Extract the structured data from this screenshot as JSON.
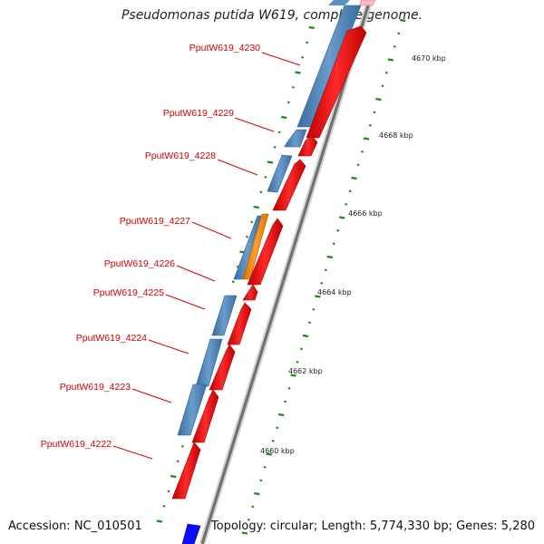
{
  "header": {
    "title": "Pseudomonas putida W619, complete genome."
  },
  "footer": {
    "accession": "Accession: NC_010501",
    "topology": "Topology: circular; Length: 5,774,330 bp; Genes: 5,280"
  },
  "scale": {
    "unit": "kbp",
    "ticks": [
      "4660 kbp",
      "4662 kbp",
      "4664 kbp",
      "4666 kbp",
      "4668 kbp",
      "4670 kbp"
    ]
  },
  "genes": [
    "PputW619_4222",
    "PputW619_4223",
    "PputW619_4224",
    "PputW619_4225",
    "PputW619_4226",
    "PputW619_4227",
    "PputW619_4228",
    "PputW619_4229",
    "PputW619_4230"
  ],
  "colors": {
    "backbone": "#8a8a8a",
    "forward_gene": "#ff0000",
    "reverse_gene": "#4682b4",
    "highlight_gene": "#ff8c00",
    "other_feature": "#0000ff",
    "label": "#d40000",
    "tick": "#1a8a1a"
  }
}
